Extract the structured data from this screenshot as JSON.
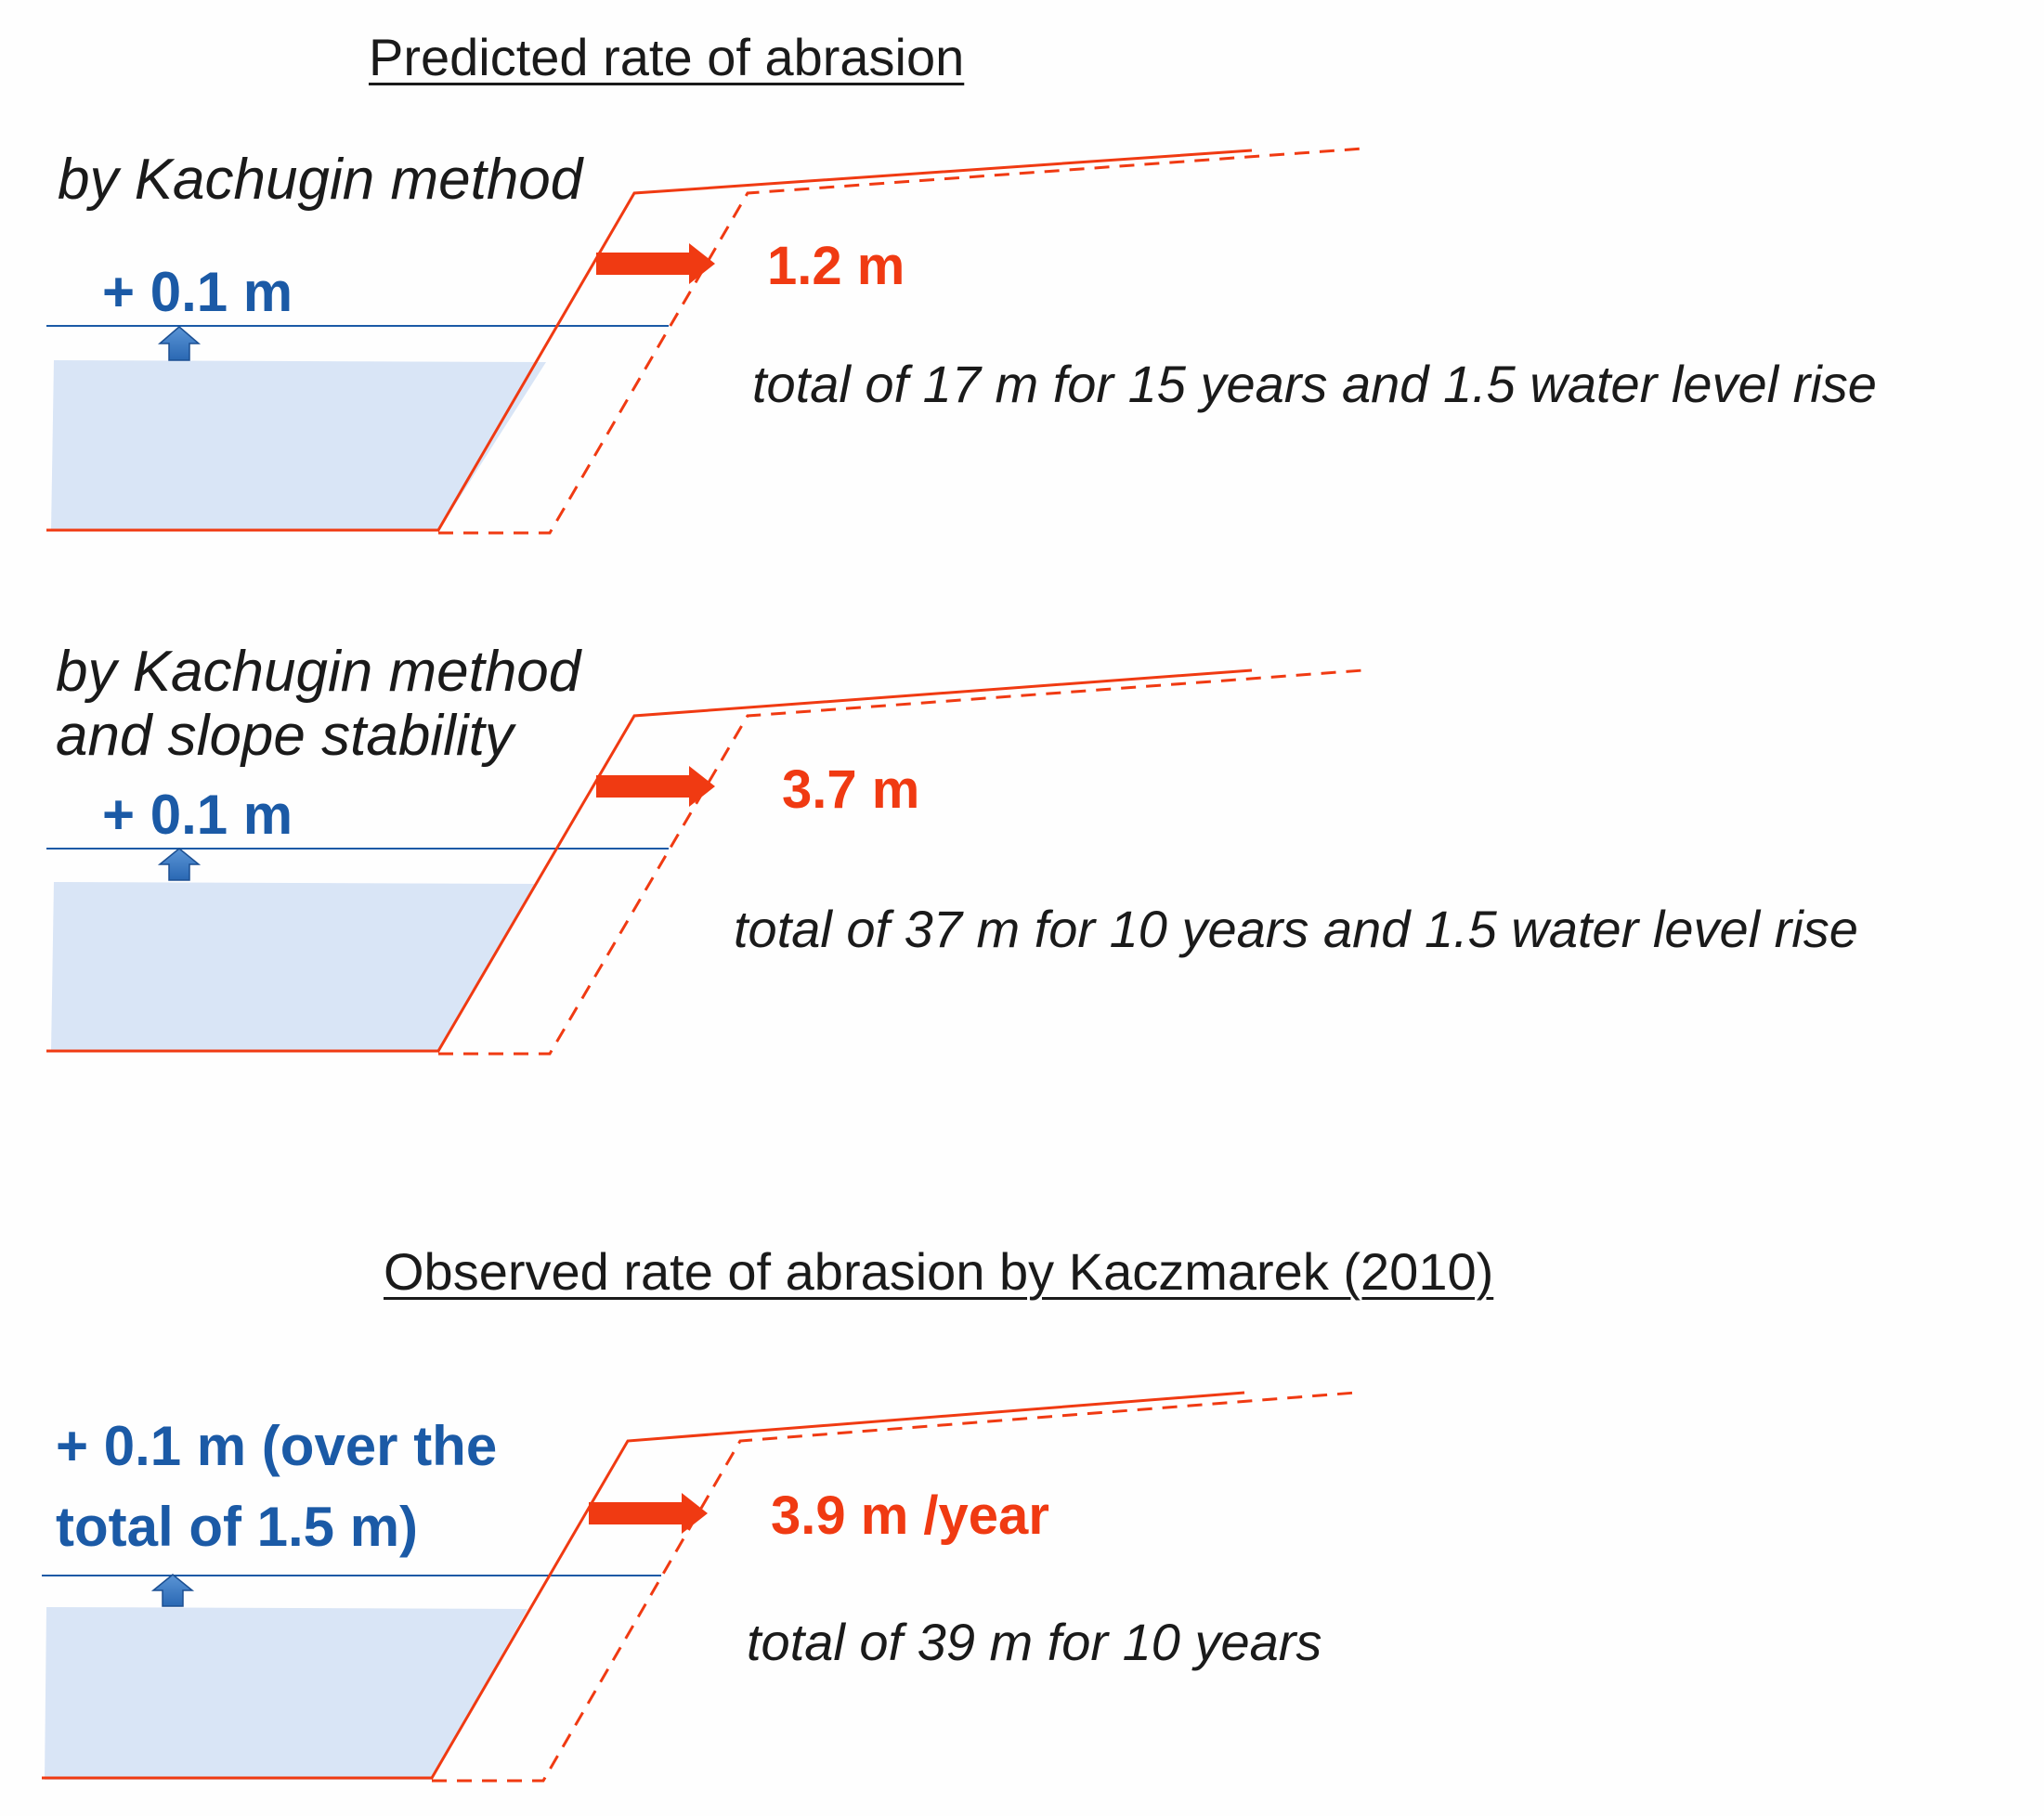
{
  "headings": {
    "predicted": "Predicted rate of abrasion",
    "observed": "Observed rate of abrasion by Kaczmarek (2010)"
  },
  "panels": [
    {
      "method_line1": "by Kachugin method",
      "method_line2": "",
      "water_rise_line1": "+ 0.1 m",
      "water_rise_line2": "",
      "retreat": "1.2 m",
      "total": "total of 17 m for 15 years and 1.5 water level rise"
    },
    {
      "method_line1": "by Kachugin method",
      "method_line2": "and slope stability",
      "water_rise_line1": "+ 0.1 m",
      "water_rise_line2": "",
      "retreat": "3.7 m",
      "total": "total of 37 m for 10 years and 1.5 water level rise"
    },
    {
      "method_line1": "",
      "method_line2": "",
      "water_rise_line1": "+ 0.1 m (over the",
      "water_rise_line2": "total of  1.5 m)",
      "retreat": "3.9 m /year",
      "total": "total of 39 m for 10 years"
    }
  ],
  "colors": {
    "profile": "#f03a12",
    "water_fill": "#d9e5f6",
    "water_line": "#1b5aa6",
    "rise_arrow": "#2f74c0"
  }
}
